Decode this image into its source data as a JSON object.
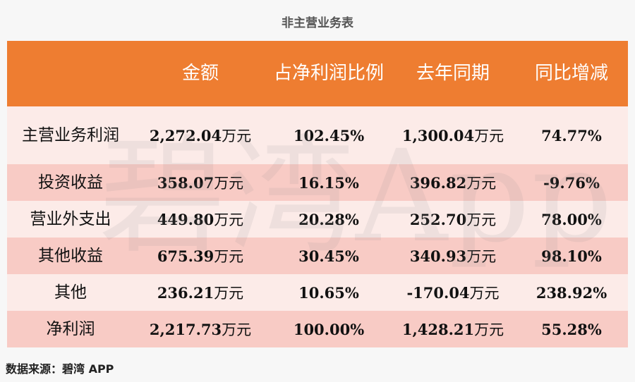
{
  "chart_data": {
    "type": "table",
    "title": "非主营业务表",
    "columns": [
      "",
      "金额",
      "占净利润比例",
      "去年同期",
      "同比增减"
    ],
    "rows": [
      {
        "label": "主营业务利润",
        "amount": "2,272.04",
        "share": "102.45%",
        "prior": "1,300.04",
        "yoy": "74.77%"
      },
      {
        "label": "投资收益",
        "amount": "358.07",
        "share": "16.15%",
        "prior": "396.82",
        "yoy": "-9.76%"
      },
      {
        "label": "营业外支出",
        "amount": "449.80",
        "share": "20.28%",
        "prior": "252.70",
        "yoy": "78.00%"
      },
      {
        "label": "其他收益",
        "amount": "675.39",
        "share": "30.45%",
        "prior": "340.93",
        "yoy": "98.10%"
      },
      {
        "label": "其他",
        "amount": "236.21",
        "share": "10.65%",
        "prior": "-170.04",
        "yoy": "238.92%"
      },
      {
        "label": "净利润",
        "amount": "2,217.73",
        "share": "100.00%",
        "prior": "1,428.21",
        "yoy": "55.28%"
      }
    ],
    "unit": "万元",
    "header_color": "#ee7d31",
    "row_colors": [
      "#fcebe8",
      "#f8cbc5"
    ]
  },
  "watermark": "碧湾App",
  "source": "数据来源：碧湾 APP"
}
